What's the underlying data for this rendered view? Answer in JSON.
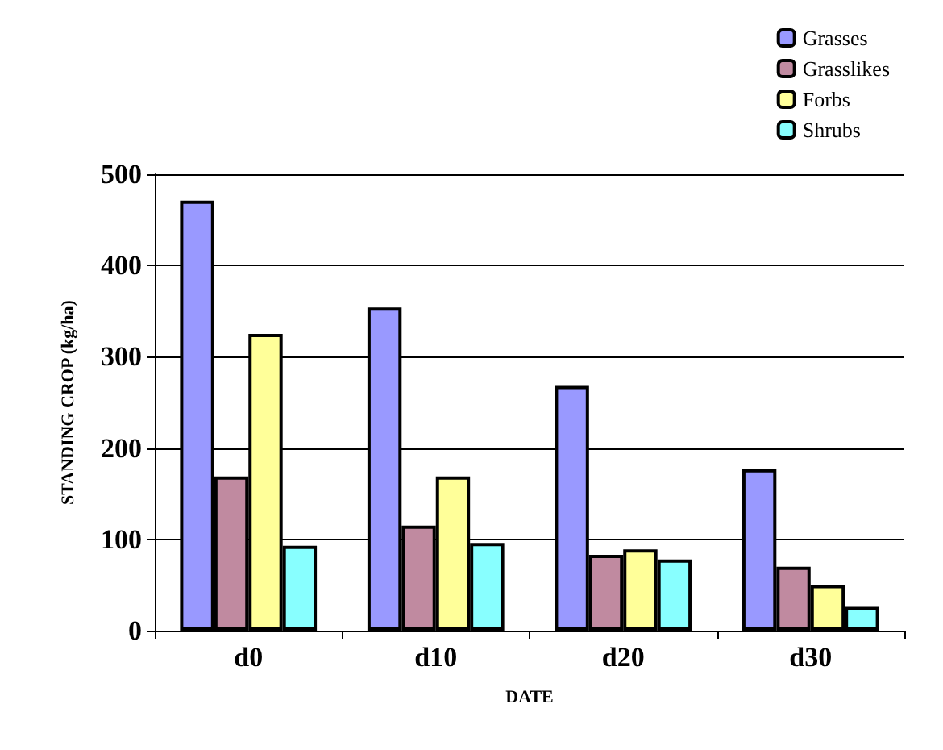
{
  "chart_data": {
    "type": "bar",
    "xlabel": "DATE",
    "ylabel": "STANDING CROP (kg/ha)",
    "categories": [
      "d0",
      "d10",
      "d20",
      "d30"
    ],
    "series": [
      {
        "name": "Grasses",
        "color": "#9999ff",
        "values": [
          471,
          354,
          268,
          177
        ]
      },
      {
        "name": "Grasslikes",
        "color": "#c08aa0",
        "values": [
          169,
          115,
          83,
          70
        ]
      },
      {
        "name": "Forbs",
        "color": "#ffff99",
        "values": [
          325,
          169,
          89,
          50
        ]
      },
      {
        "name": "Shrubs",
        "color": "#88ffff",
        "values": [
          93,
          96,
          78,
          26
        ]
      }
    ],
    "ylim": [
      0,
      500
    ],
    "yticks": [
      0,
      100,
      200,
      300,
      400,
      500
    ],
    "grid": "y",
    "legend": "top right"
  }
}
